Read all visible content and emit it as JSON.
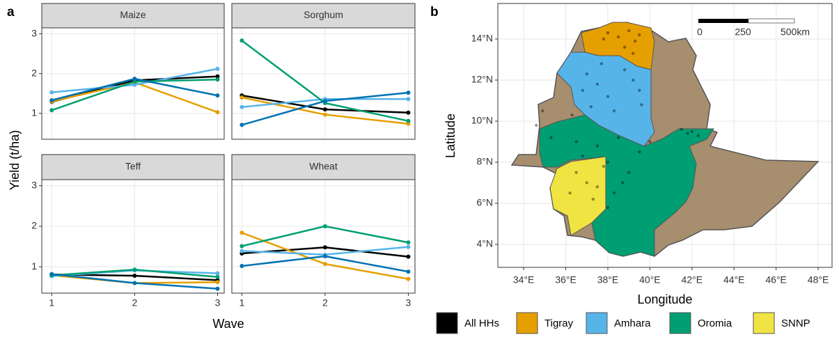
{
  "chart_data": [
    {
      "type": "line",
      "panel_label": "a",
      "xlabel": "Wave",
      "ylabel": "Yield (t/ha)",
      "facets": [
        "Maize",
        "Sorghum",
        "Teff",
        "Wheat"
      ],
      "x": [
        1,
        2,
        3
      ],
      "xlim": [
        0.88,
        3.08
      ],
      "xticks": [
        1,
        2,
        3
      ],
      "ylim": [
        0.35,
        3.15
      ],
      "yticks": [
        1,
        2,
        3
      ],
      "grid": true,
      "series": [
        {
          "name": "All HHs",
          "color": "#000000",
          "fill": "#000000",
          "values": [
            [
              1.29,
              1.83,
              1.93
            ],
            [
              1.45,
              1.1,
              1.02
            ],
            [
              0.81,
              0.78,
              0.67
            ],
            [
              1.33,
              1.48,
              1.25
            ]
          ]
        },
        {
          "name": "Tigray",
          "color": "#E69F00",
          "fill": "#E69F00",
          "values": [
            [
              1.3,
              1.78,
              1.03
            ],
            [
              1.4,
              0.97,
              0.74
            ],
            [
              0.79,
              0.6,
              0.62
            ],
            [
              1.84,
              1.07,
              0.7
            ]
          ]
        },
        {
          "name": "Amhara",
          "color": "#56B4E9",
          "fill": "#56B4E9",
          "values": [
            [
              1.53,
              1.72,
              2.12
            ],
            [
              1.16,
              1.36,
              1.36
            ],
            [
              0.77,
              0.91,
              0.84
            ],
            [
              1.39,
              1.3,
              1.49
            ]
          ]
        },
        {
          "name": "Oromia",
          "color": "#009E73",
          "fill": "#009E73",
          "values": [
            [
              1.08,
              1.8,
              1.85
            ],
            [
              2.83,
              1.26,
              0.81
            ],
            [
              0.79,
              0.93,
              0.75
            ],
            [
              1.51,
              2.0,
              1.6
            ]
          ]
        },
        {
          "name": "SNNP",
          "color": "#0072B2",
          "fill": "#F0E442",
          "values": [
            [
              1.33,
              1.87,
              1.45
            ],
            [
              0.71,
              1.31,
              1.52
            ],
            [
              0.82,
              0.6,
              0.46
            ],
            [
              1.02,
              1.26,
              0.88
            ]
          ]
        }
      ]
    },
    {
      "type": "map",
      "panel_label": "b",
      "xlabel": "Longitude",
      "ylabel": "Latitude",
      "land_color": "#A68E6F",
      "point_color": "#000000",
      "scale_bar": [
        "0",
        "250",
        "500km"
      ],
      "xlim": [
        32.77,
        48.66
      ],
      "ylim": [
        2.88,
        15.73
      ],
      "xticks": [
        {
          "value": 34,
          "label": "34°E"
        },
        {
          "value": 36,
          "label": "36°E"
        },
        {
          "value": 38,
          "label": "38°E"
        },
        {
          "value": 40,
          "label": "40°E"
        },
        {
          "value": 42,
          "label": "42°E"
        },
        {
          "value": 44,
          "label": "44°E"
        },
        {
          "value": 46,
          "label": "46°E"
        },
        {
          "value": 48,
          "label": "48°E"
        }
      ],
      "yticks": [
        {
          "value": 4,
          "label": "4°N"
        },
        {
          "value": 6,
          "label": "6°N"
        },
        {
          "value": 8,
          "label": "8°N"
        },
        {
          "value": 10,
          "label": "10°N"
        },
        {
          "value": 12,
          "label": "12°N"
        },
        {
          "value": 14,
          "label": "14°N"
        }
      ],
      "x": [
        38.0,
        38.5,
        39.0,
        39.3,
        38.8,
        39.5,
        37.8,
        39.2,
        37.0,
        37.5,
        38.0,
        38.8,
        39.5,
        39.6,
        37.2,
        36.8,
        38.3,
        39.2,
        37.7,
        36.3,
        34.9,
        34.6,
        35.3,
        36.5,
        37.5,
        38.5,
        39.5,
        40.0,
        38.0,
        36.8,
        41.8,
        42.0,
        42.3,
        41.5,
        39.0,
        38.7,
        38.3,
        36.5,
        37.0,
        37.5,
        37.8,
        36.2,
        37.3,
        38.0
      ],
      "y": [
        14.3,
        14.1,
        14.4,
        13.9,
        13.6,
        14.2,
        14.0,
        13.3,
        12.3,
        11.8,
        11.2,
        12.5,
        11.5,
        10.8,
        10.7,
        11.5,
        10.5,
        12.0,
        12.8,
        10.3,
        10.5,
        9.8,
        9.2,
        9.0,
        8.8,
        9.2,
        8.5,
        9.0,
        8.0,
        8.3,
        9.4,
        9.5,
        9.3,
        9.6,
        7.5,
        7.0,
        6.5,
        7.5,
        7.0,
        6.8,
        7.8,
        6.5,
        6.2,
        5.8
      ]
    }
  ]
}
